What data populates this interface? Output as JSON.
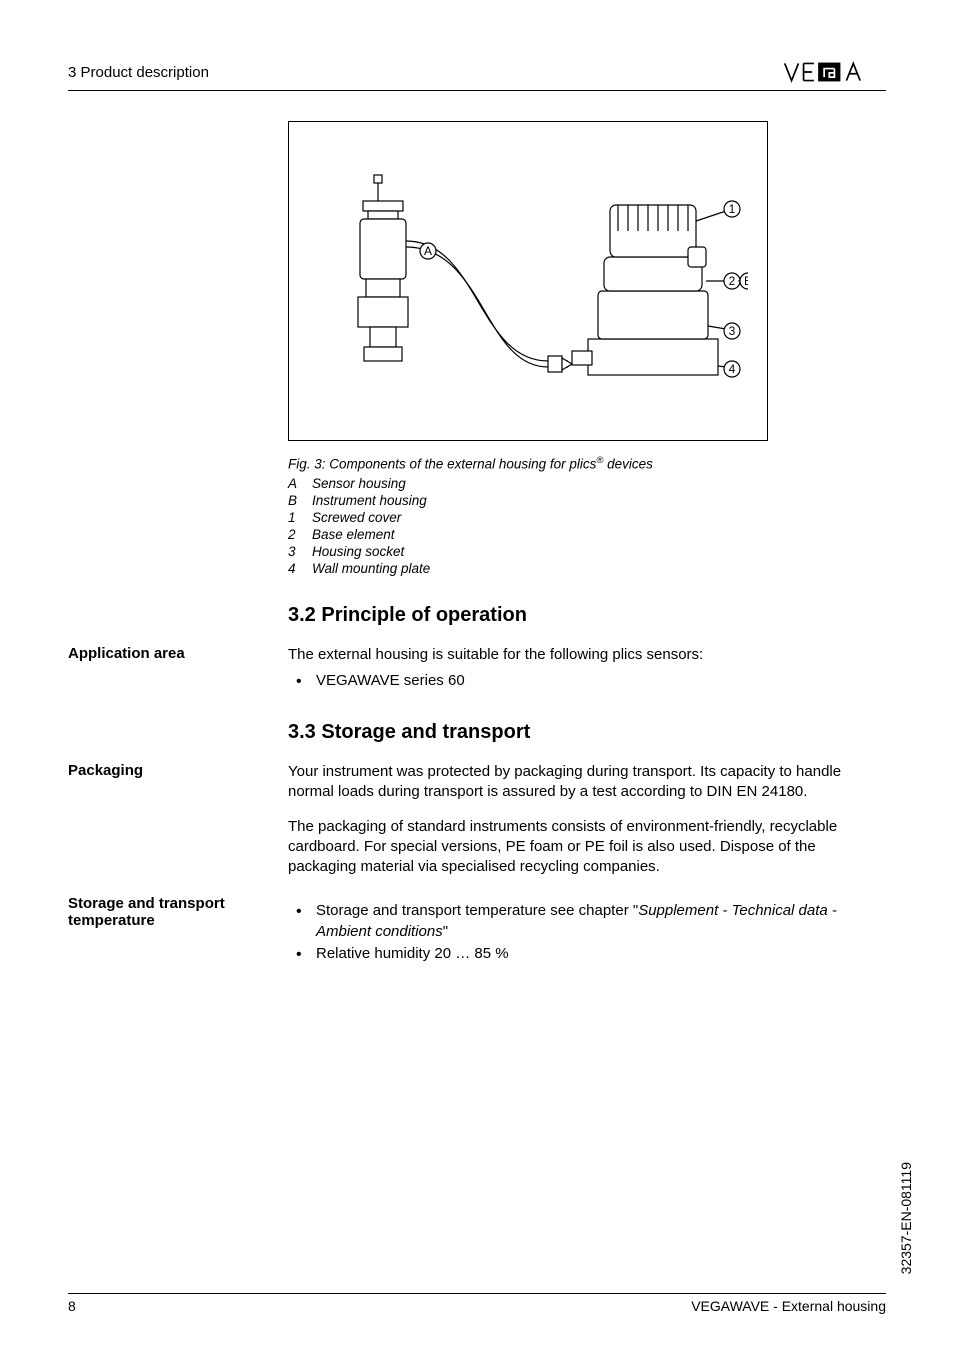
{
  "header": {
    "section": "3  Product description",
    "logo_text": "VEGA"
  },
  "figure": {
    "caption_prefix": "Fig. 3: Components of the external housing for plics",
    "caption_suffix": " devices",
    "legend": [
      {
        "key": "A",
        "text": "Sensor housing"
      },
      {
        "key": "B",
        "text": "Instrument housing"
      },
      {
        "key": "1",
        "text": "Screwed cover"
      },
      {
        "key": "2",
        "text": "Base element"
      },
      {
        "key": "3",
        "text": "Housing socket"
      },
      {
        "key": "4",
        "text": "Wall mounting plate"
      }
    ],
    "labels_in_svg": {
      "A": "A",
      "B": "B",
      "n1": "1",
      "n2": "2",
      "n3": "3",
      "n4": "4"
    },
    "stroke": "#000000",
    "fill": "#ffffff"
  },
  "s32": {
    "heading": "3.2  Principle of operation",
    "side": "Application area",
    "intro": "The external housing is suitable for the following plics sensors:",
    "bullet1": "VEGAWAVE series 60"
  },
  "s33": {
    "heading": "3.3  Storage and transport",
    "packaging_side": "Packaging",
    "packaging_p1": "Your instrument was protected by packaging during transport. Its capacity to handle normal loads during transport is assured by a test according to DIN EN 24180.",
    "packaging_p2": "The packaging of standard instruments consists of environment-friendly, recyclable cardboard. For special versions, PE foam or PE foil is also used. Dispose of the packaging material via specialised recycling companies.",
    "storage_side": "Storage and transport temperature",
    "storage_b1_pre": "Storage and transport temperature see chapter \"",
    "storage_b1_italic": "Supplement - Technical data - Ambient conditions",
    "storage_b1_post": "\"",
    "storage_b2": "Relative humidity 20 … 85 %"
  },
  "footer": {
    "page": "8",
    "doc": "VEGAWAVE - External housing",
    "docid": "32357-EN-081119"
  },
  "style": {
    "page_bg": "#ffffff",
    "text_color": "#000000",
    "body_font_size": 15,
    "caption_font_size": 13.5,
    "heading_font_size": 20
  }
}
